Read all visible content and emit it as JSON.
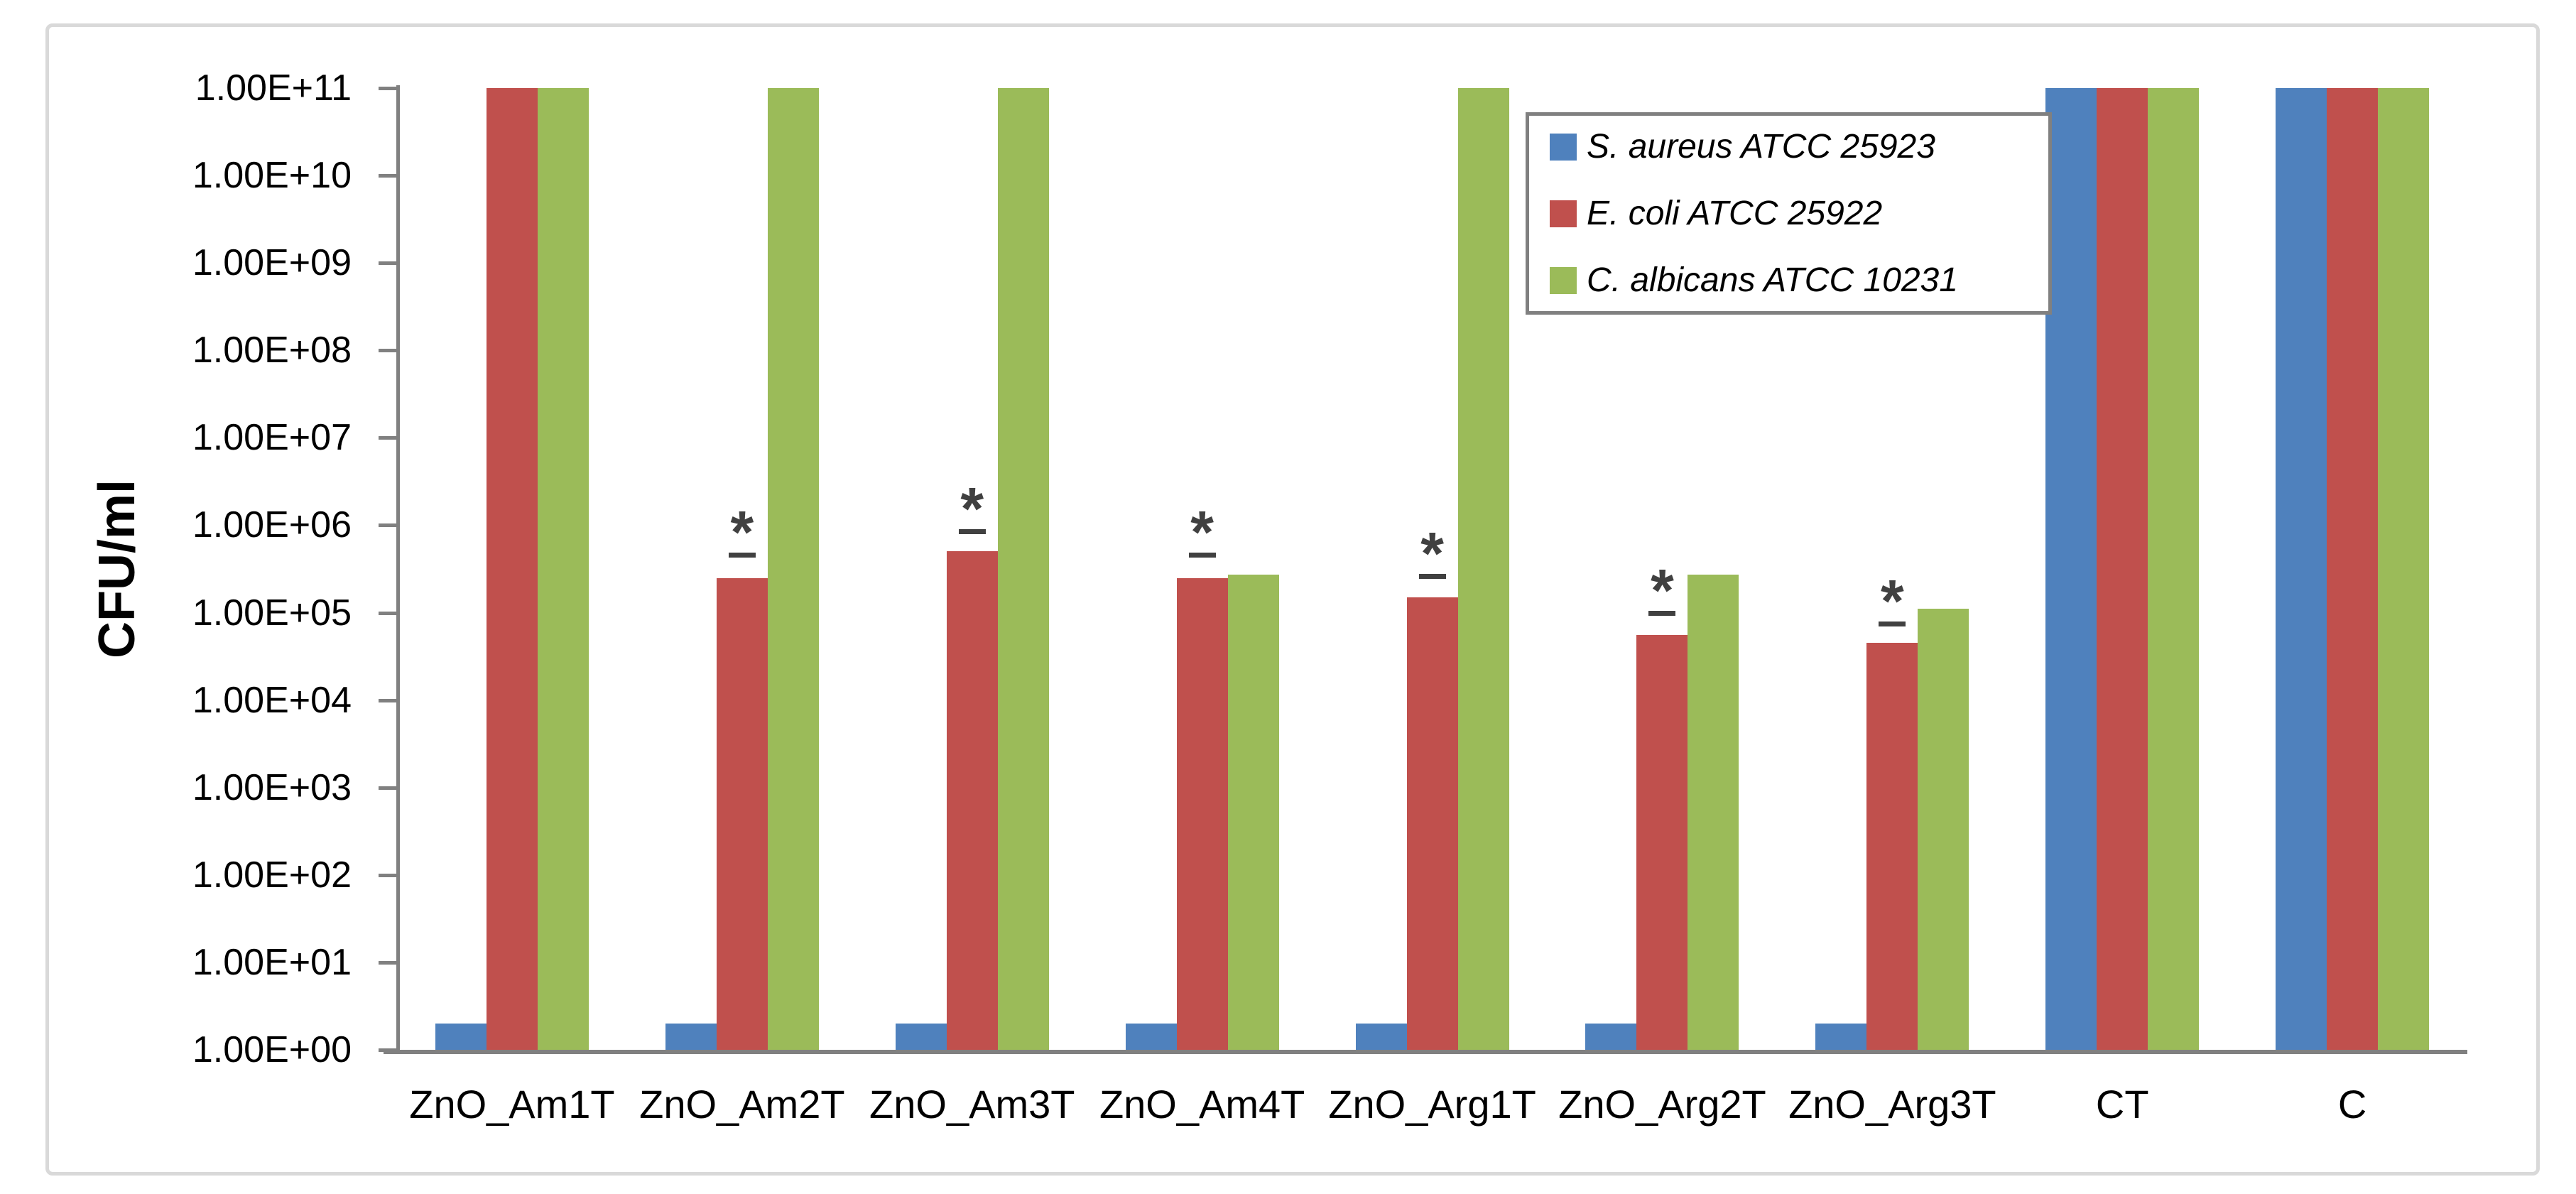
{
  "figure": {
    "background": "#ffffff",
    "border_color": "#D9D9D9"
  },
  "chart_data": {
    "type": "bar",
    "title": "",
    "xlabel": "",
    "ylabel": "CFU/ml",
    "y_scale": "log",
    "ylim": [
      1,
      100000000000
    ],
    "grid": false,
    "legend_position": "top-right",
    "axis_color": "#808080",
    "marker_color": "#404040",
    "text_color": "#000000",
    "y_ticks": [
      "1.00E+00",
      "1.00E+01",
      "1.00E+02",
      "1.00E+03",
      "1.00E+04",
      "1.00E+05",
      "1.00E+06",
      "1.00E+07",
      "1.00E+08",
      "1.00E+09",
      "1.00E+10",
      "1.00E+11"
    ],
    "categories": [
      "ZnO_Am1T",
      "ZnO_Am2T",
      "ZnO_Am3T",
      "ZnO_Am4T",
      "ZnO_Arg1T",
      "ZnO_Arg2T",
      "ZnO_Arg3T",
      "CT",
      "C"
    ],
    "series": [
      {
        "name": "S. aureus ATCC 25923",
        "color": "#4F81BD",
        "values": [
          2,
          2,
          2,
          2,
          2,
          2,
          2,
          100000000000,
          100000000000
        ]
      },
      {
        "name": "E. coli ATCC 25922",
        "color": "#C0504D",
        "values": [
          100000000000,
          250000,
          500000,
          250000,
          150000,
          55000,
          45000,
          100000000000,
          100000000000
        ]
      },
      {
        "name": "C. albicans ATCC 10231",
        "color": "#9BBB59",
        "values": [
          100000000000,
          100000000000,
          100000000000,
          270000,
          100000000000,
          270000,
          110000,
          100000000000,
          100000000000
        ]
      }
    ],
    "significance": {
      "symbol": "*",
      "on_series": "E. coli ATCC 25922",
      "cap_values": [
        null,
        460000,
        850000,
        460000,
        260000,
        100000,
        75000,
        null,
        null
      ]
    }
  }
}
